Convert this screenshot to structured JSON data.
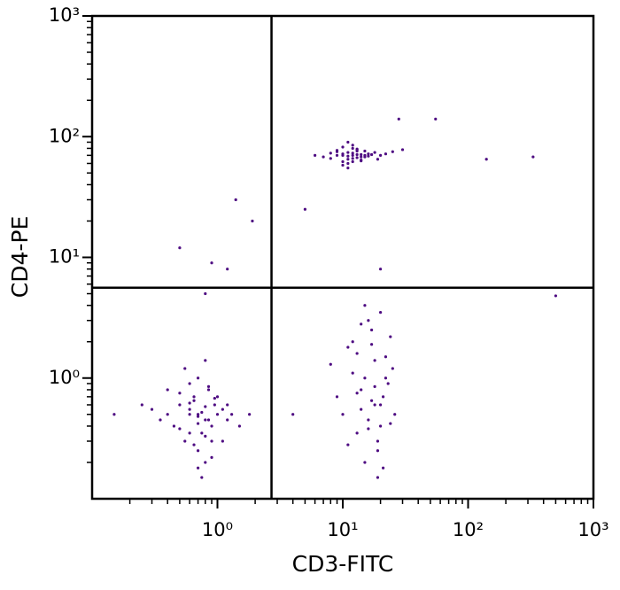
{
  "chart_data": {
    "type": "scatter",
    "xlabel": "CD3-FITC",
    "ylabel": "CD4-PE",
    "log_x": true,
    "log_y": true,
    "minor_ticks": true,
    "xlim": [
      0.1,
      1000
    ],
    "ylim": [
      0.1,
      1000
    ],
    "xticks": [
      {
        "value": 1,
        "label": "10⁰"
      },
      {
        "value": 10,
        "label": "10¹"
      },
      {
        "value": 100,
        "label": "10²"
      },
      {
        "value": 1000,
        "label": "10³"
      }
    ],
    "yticks": [
      {
        "value": 1,
        "label": "10⁰"
      },
      {
        "value": 10,
        "label": "10¹"
      },
      {
        "value": 100,
        "label": "10²"
      },
      {
        "value": 1000,
        "label": "10³"
      }
    ],
    "gates": {
      "x": 2.7,
      "y": 5.6
    },
    "color": "#4e0c82",
    "x": [
      0.7,
      0.8,
      0.6,
      0.9,
      0.5,
      0.75,
      0.65,
      1.0,
      0.55,
      0.85,
      1.2,
      0.4,
      0.7,
      0.95,
      0.6,
      0.8,
      1.1,
      0.45,
      0.7,
      0.9,
      0.65,
      0.5,
      1.3,
      0.35,
      0.75,
      0.85,
      0.6,
      1.0,
      0.7,
      0.55,
      0.8,
      1.5,
      0.3,
      0.9,
      0.7,
      0.6,
      1.1,
      0.8,
      0.5,
      0.75,
      0.95,
      0.65,
      0.4,
      1.2,
      0.7,
      0.85,
      0.6,
      1.8,
      0.25,
      0.8,
      15,
      18,
      12,
      20,
      14,
      22,
      16,
      10,
      19,
      25,
      13,
      17,
      21,
      11,
      15,
      23,
      18,
      14,
      20,
      9,
      16,
      24,
      12,
      19,
      17,
      13,
      21,
      15,
      26,
      18,
      11,
      14,
      22,
      16,
      20,
      8,
      13,
      17,
      24,
      19,
      12,
      10,
      14,
      9,
      11,
      13,
      15,
      8,
      12,
      16,
      10,
      18,
      11,
      13,
      9,
      14,
      12,
      20,
      7,
      11,
      15,
      10,
      13,
      17,
      12,
      9,
      14,
      11,
      22,
      10,
      13,
      16,
      12,
      8,
      11,
      25,
      14,
      12,
      10,
      15,
      13,
      30,
      11,
      6,
      19,
      0.5,
      0.9,
      1.2,
      1.9,
      1.4,
      5,
      0.8,
      20,
      28,
      55,
      140,
      330,
      500,
      0.15,
      4
    ],
    "values": [
      0.5,
      0.45,
      0.55,
      0.4,
      0.6,
      0.35,
      0.7,
      0.5,
      0.3,
      0.8,
      0.45,
      0.5,
      0.25,
      0.6,
      0.9,
      0.2,
      0.55,
      0.4,
      1.0,
      0.3,
      0.65,
      0.75,
      0.5,
      0.45,
      0.15,
      0.85,
      0.35,
      0.7,
      0.42,
      1.2,
      0.58,
      0.4,
      0.55,
      0.22,
      0.48,
      0.62,
      0.3,
      1.4,
      0.38,
      0.52,
      0.68,
      0.28,
      0.8,
      0.6,
      0.18,
      0.45,
      0.5,
      0.5,
      0.6,
      0.33,
      1.0,
      0.6,
      2.0,
      0.4,
      0.8,
      1.5,
      3.0,
      0.5,
      0.25,
      1.2,
      0.35,
      2.5,
      0.7,
      1.8,
      0.2,
      0.9,
      1.4,
      0.55,
      3.5,
      0.7,
      0.45,
      2.2,
      1.1,
      0.3,
      0.65,
      1.6,
      0.18,
      4.0,
      0.5,
      0.85,
      0.28,
      2.8,
      1.0,
      0.38,
      0.6,
      1.3,
      0.75,
      1.9,
      0.42,
      0.15,
      70,
      72,
      68,
      75,
      65,
      78,
      70,
      66,
      80,
      72,
      62,
      74,
      69,
      71,
      77,
      64,
      73,
      70,
      68,
      60,
      76,
      82,
      67,
      71,
      85,
      70,
      63,
      74,
      72,
      58,
      79,
      69,
      66,
      73,
      90,
      75,
      71,
      62,
      70,
      68,
      76,
      78,
      55,
      70,
      65,
      12,
      9,
      8,
      20,
      30,
      25,
      5,
      8,
      140,
      140,
      65,
      68,
      4.8,
      0.5,
      0.5
    ]
  }
}
